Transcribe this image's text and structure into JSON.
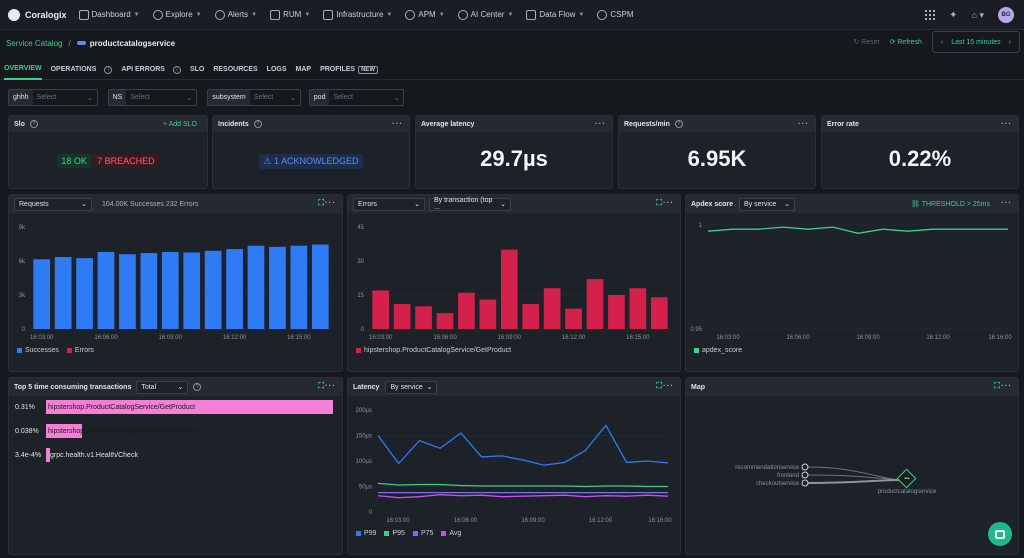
{
  "nav": {
    "brand": "Coralogix",
    "items": [
      "Dashboard",
      "Explore",
      "Alerts",
      "RUM",
      "Infrastructure",
      "APM",
      "AI Center",
      "Data Flow",
      "CSPM"
    ],
    "user_initials": "BG"
  },
  "breadcrumb": {
    "root": "Service Catalog",
    "service": "productcatalogservice",
    "reset": "Reset",
    "refresh": "Refresh",
    "time_range": "Last 15 minutes"
  },
  "tabs": [
    "OVERVIEW",
    "OPERATIONS",
    "API ERRORS",
    "SLO",
    "RESOURCES",
    "LOGS",
    "MAP",
    "PROFILES"
  ],
  "tabs_new_badge": "NEW",
  "filters": [
    {
      "label": "ghhh",
      "placeholder": "Select"
    },
    {
      "label": "NS",
      "placeholder": "Select"
    },
    {
      "label": "subsystem",
      "placeholder": "Select"
    },
    {
      "label": "pod",
      "placeholder": "Select"
    }
  ],
  "slo": {
    "title": "Slo",
    "add": "+ Add SLO",
    "ok": "18 OK",
    "breached": "7 BREACHED"
  },
  "incidents": {
    "title": "Incidents",
    "badge": "1 ACKNOWLEDGED"
  },
  "latency_card": {
    "title": "Average latency",
    "value": "29.7µs"
  },
  "requests_card": {
    "title": "Requests/min",
    "value": "6.95K"
  },
  "error_card": {
    "title": "Error rate",
    "value": "0.22%"
  },
  "requests_chart": {
    "select": "Requests",
    "summary": "104.00K Successes 232 Errors",
    "legend": [
      "Successes",
      "Errors"
    ]
  },
  "errors_chart": {
    "select": "Errors",
    "group": "By transaction (top ...",
    "legend": "hipstershop.ProductCatalogService/GetProduct"
  },
  "apdex_chart": {
    "title": "Apdex score",
    "group": "By service",
    "threshold": "THRESHOLD > 25ms",
    "legend": "apdex_score"
  },
  "top5": {
    "title": "Top 5 time consuming transactions",
    "select": "Total",
    "rows": [
      {
        "pct": "0.31%",
        "name": "hipstershop.ProductCatalogService/GetProduct",
        "value": 1.0
      },
      {
        "pct": "0.038%",
        "name": "hipstershop.ProductCatalogService/ListProducts",
        "value": 0.125
      },
      {
        "pct": "3.4e-4%",
        "name": "grpc.health.v1.Health/Check",
        "value": 0.011
      }
    ]
  },
  "latency_chart": {
    "title": "Latency",
    "group": "By service",
    "legend": [
      "P99",
      "P95",
      "P75",
      "Avg"
    ]
  },
  "map": {
    "title": "Map",
    "nodes": [
      "recommendationservice",
      "frontend",
      "checkoutservice"
    ],
    "target": "productcatalogservice"
  },
  "colors": {
    "accent": "#3ecf8e",
    "success": "#2f7bf5",
    "error": "#d4214b",
    "apdex": "#3ecf8e",
    "p99": "#2f7bf5",
    "p95": "#3ecf8e",
    "p75": "#7b6df5",
    "avg": "#c254e0",
    "top5": "#f57fd7"
  },
  "chart_data": [
    {
      "type": "bar",
      "title": "Requests",
      "x": [
        "16:03:00",
        "16:04:00",
        "16:05:00",
        "16:06:00",
        "16:07:00",
        "16:08:00",
        "16:09:00",
        "16:10:00",
        "16:11:00",
        "16:12:00",
        "16:13:00",
        "16:14:00",
        "16:15:00",
        "16:16:00"
      ],
      "xticks": [
        "16:03:00",
        "16:06:00",
        "16:09:00",
        "16:12:00",
        "16:15:00"
      ],
      "yticks": [
        "0",
        "3k",
        "6k",
        "9k"
      ],
      "ylim": [
        0,
        9000
      ],
      "series": [
        {
          "name": "Successes",
          "values": [
            6150,
            6350,
            6250,
            6800,
            6600,
            6700,
            6800,
            6750,
            6900,
            7050,
            7350,
            7250,
            7350,
            7450
          ]
        },
        {
          "name": "Errors",
          "values": [
            17,
            11,
            10,
            7,
            16,
            13,
            35,
            11,
            18,
            9,
            22,
            15,
            18,
            14
          ]
        }
      ]
    },
    {
      "type": "bar",
      "title": "Errors",
      "x": [
        "16:03:00",
        "16:04:00",
        "16:05:00",
        "16:06:00",
        "16:07:00",
        "16:08:00",
        "16:09:00",
        "16:10:00",
        "16:11:00",
        "16:12:00",
        "16:13:00",
        "16:14:00",
        "16:15:00",
        "16:16:00"
      ],
      "xticks": [
        "16:03:00",
        "16:06:00",
        "16:09:00",
        "16:12:00",
        "16:15:00"
      ],
      "yticks": [
        "0",
        "15",
        "30",
        "45"
      ],
      "ylim": [
        0,
        45
      ],
      "series": [
        {
          "name": "hipstershop.ProductCatalogService/GetProduct",
          "values": [
            17,
            11,
            10,
            7,
            16,
            13,
            35,
            11,
            18,
            9,
            22,
            15,
            18,
            14
          ]
        }
      ]
    },
    {
      "type": "line",
      "title": "Apdex score",
      "xticks": [
        "16:03:00",
        "16:06:00",
        "16:09:00",
        "16:12:00",
        "16:16:00"
      ],
      "yticks": [
        "0.95",
        "1"
      ],
      "ylim": [
        0.95,
        1.0
      ],
      "series": [
        {
          "name": "apdex_score",
          "values": [
            0.997,
            0.998,
            0.998,
            0.999,
            0.998,
            0.999,
            0.996,
            0.998,
            0.997,
            0.998,
            0.998,
            0.998,
            0.998
          ]
        }
      ]
    },
    {
      "type": "line",
      "title": "Latency",
      "xticks": [
        "16:03:00",
        "16:06:00",
        "16:09:00",
        "16:12:00",
        "16:16:00"
      ],
      "yticks": [
        "0",
        "50µs",
        "100µs",
        "150µs",
        "200µs"
      ],
      "ylim": [
        0,
        200
      ],
      "series": [
        {
          "name": "P99",
          "values": [
            150,
            95,
            140,
            125,
            155,
            108,
            110,
            102,
            92,
            97,
            120,
            170,
            97,
            100,
            96
          ]
        },
        {
          "name": "P95",
          "values": [
            56,
            53,
            54,
            54,
            52,
            51,
            51,
            51,
            51,
            51,
            50,
            51,
            51,
            50,
            50
          ]
        },
        {
          "name": "P75",
          "values": [
            38,
            38,
            38,
            38,
            38,
            38,
            38,
            38,
            38,
            38,
            38,
            38,
            38,
            38,
            38
          ]
        },
        {
          "name": "Avg",
          "values": [
            32,
            28,
            30,
            34,
            32,
            33,
            30,
            31,
            32,
            33,
            30,
            32,
            31,
            33,
            31
          ]
        }
      ]
    }
  ]
}
